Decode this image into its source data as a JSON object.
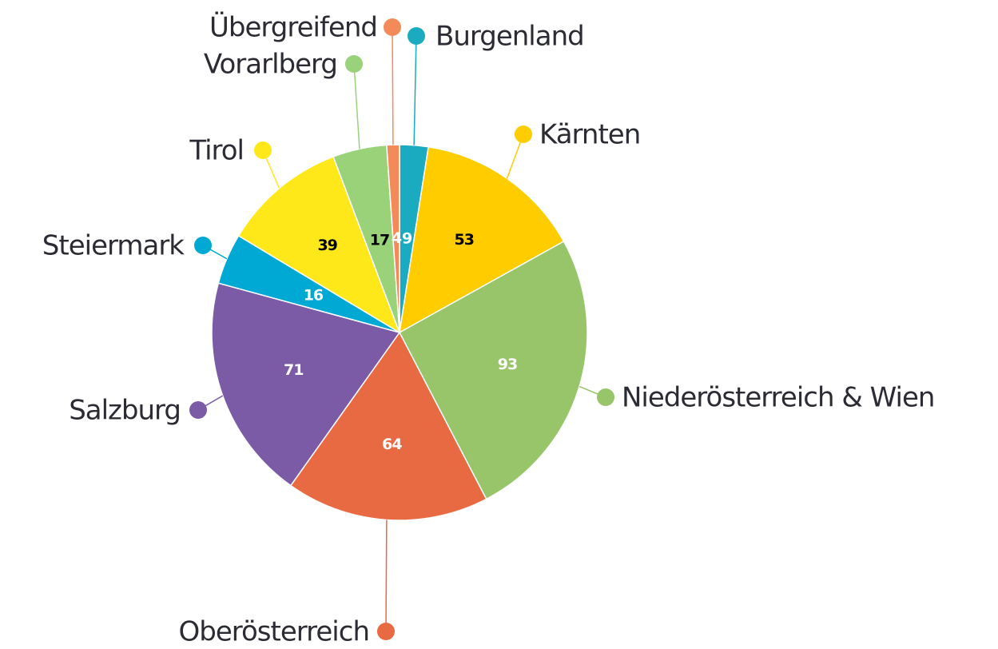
{
  "chart_data": {
    "type": "pie",
    "categories": [
      "Burgenland",
      "Kärnten",
      "Niederösterreich & Wien",
      "Oberösterreich",
      "Salzburg",
      "Steiermark",
      "Tirol",
      "Vorarlberg",
      "Übergreifend"
    ],
    "values": [
      9,
      53,
      93,
      64,
      71,
      16,
      39,
      17,
      4
    ],
    "colors": [
      "#1aabc0",
      "#ffcc00",
      "#98c46a",
      "#e86a42",
      "#7b5aa6",
      "#00a9d4",
      "#ffe81a",
      "#9ad27a",
      "#f28a5a"
    ],
    "value_label_colors": [
      "#ffffff",
      "#000000",
      "#ffffff",
      "#ffffff",
      "#ffffff",
      "#ffffff",
      "#000000",
      "#000000",
      "#ffffff"
    ]
  }
}
